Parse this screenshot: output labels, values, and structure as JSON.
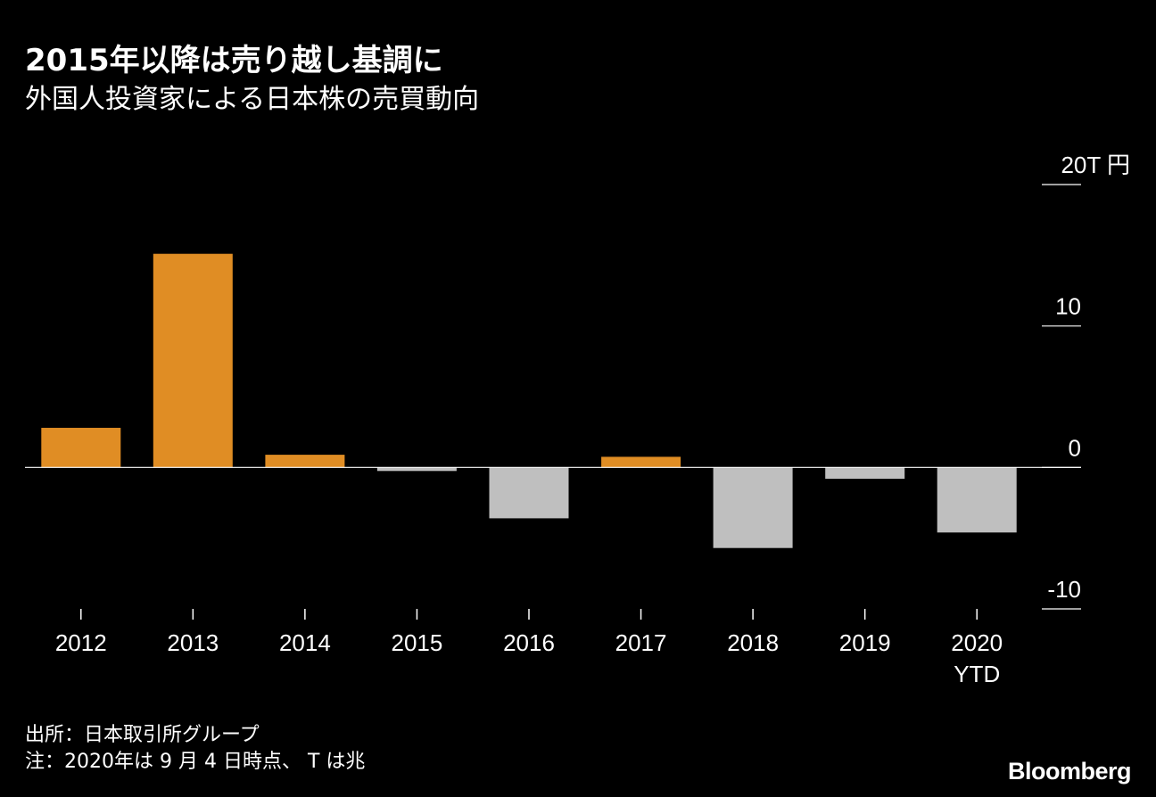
{
  "header": {
    "title": "2015年以降は売り越し基調に",
    "subtitle": "外国人投資家による日本株の売買動向"
  },
  "footer": {
    "source": "出所：日本取引所グループ",
    "note": "注：2020年は 9 月 4 日時点、 T は兆",
    "brand": "Bloomberg"
  },
  "colors": {
    "positive": "#e08d24",
    "negative": "#bfbfbf",
    "background": "#000000",
    "text": "#ffffff"
  },
  "chart_data": {
    "type": "bar",
    "title": "2015年以降は売り越し基調に",
    "subtitle": "外国人投資家による日本株の売買動向",
    "categories": [
      "2012",
      "2013",
      "2014",
      "2015",
      "2016",
      "2017",
      "2018",
      "2019",
      "2020"
    ],
    "category_sublabels": [
      "",
      "",
      "",
      "",
      "",
      "",
      "",
      "",
      "YTD"
    ],
    "values": [
      2.8,
      15.1,
      0.9,
      -0.25,
      -3.6,
      0.75,
      -5.7,
      -0.8,
      -4.6
    ],
    "yunit": "T 円",
    "ylim": [
      -10,
      20
    ],
    "yticks": [
      -10,
      0,
      10,
      20
    ],
    "ytick_labels": [
      "-10",
      "0",
      "10",
      "20T 円"
    ],
    "axis_position": "right",
    "grid": false,
    "legend": "none"
  }
}
